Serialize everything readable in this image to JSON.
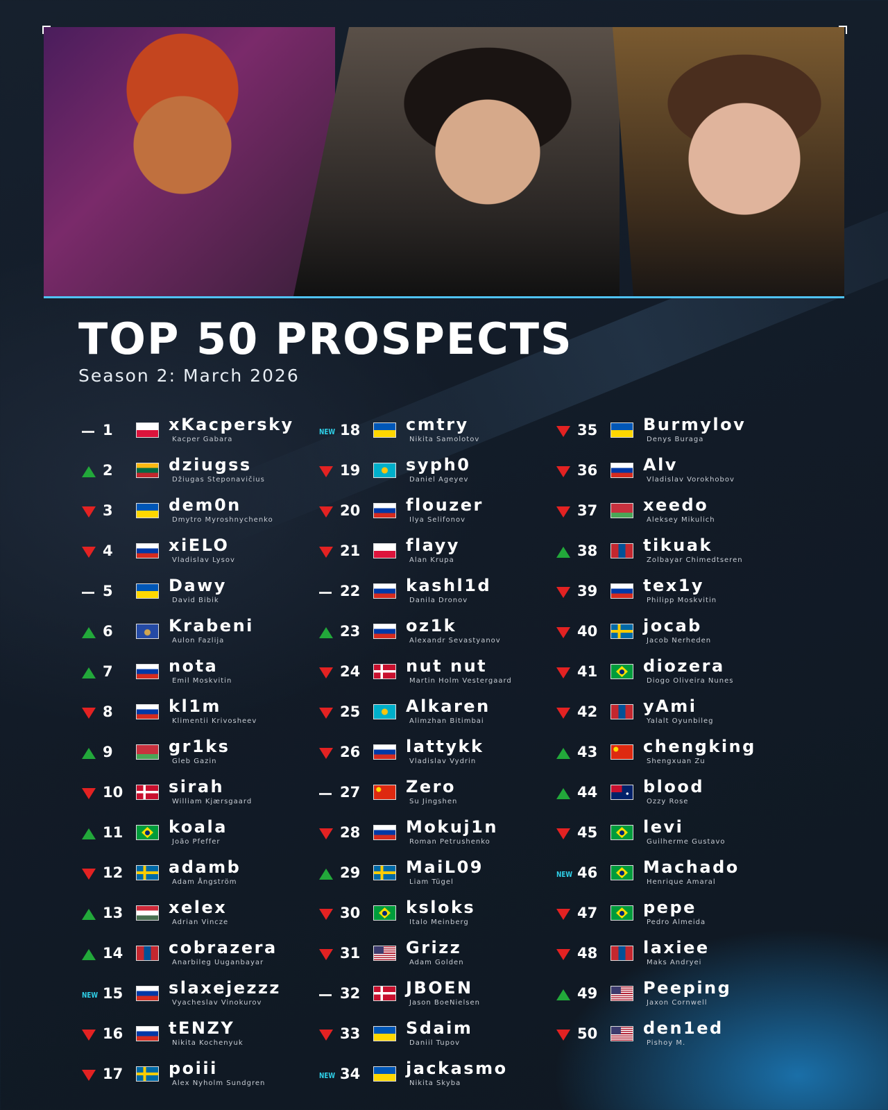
{
  "title": "TOP 50 PROSPECTS",
  "subtitle": "Season 2: March 2026",
  "colors": {
    "up": "#22a83a",
    "down": "#e32222",
    "new": "#2fd0e8",
    "accent": "#4fc3f7"
  },
  "players": [
    {
      "rank": "1",
      "trend": "same",
      "flag": "pl",
      "nick": "xKacpersky",
      "name": "Kacper Gabara"
    },
    {
      "rank": "2",
      "trend": "up",
      "flag": "lt",
      "nick": "dziugss",
      "name": "Džiugas Steponavičius"
    },
    {
      "rank": "3",
      "trend": "down",
      "flag": "ua",
      "nick": "dem0n",
      "name": "Dmytro Myroshnychenko"
    },
    {
      "rank": "4",
      "trend": "down",
      "flag": "ru",
      "nick": "xiELO",
      "name": "Vladislav Lysov"
    },
    {
      "rank": "5",
      "trend": "same",
      "flag": "ua",
      "nick": "Dawy",
      "name": "David Bibik"
    },
    {
      "rank": "6",
      "trend": "up",
      "flag": "xk",
      "nick": "Krabeni",
      "name": "Aulon Fazlija"
    },
    {
      "rank": "7",
      "trend": "up",
      "flag": "ru",
      "nick": "nota",
      "name": "Emil Moskvitin"
    },
    {
      "rank": "8",
      "trend": "down",
      "flag": "ru",
      "nick": "kl1m",
      "name": "Klimentii Krivosheev"
    },
    {
      "rank": "9",
      "trend": "up",
      "flag": "by",
      "nick": "gr1ks",
      "name": "Gleb Gazin"
    },
    {
      "rank": "10",
      "trend": "down",
      "flag": "dk",
      "nick": "sirah",
      "name": "William Kjærsgaard"
    },
    {
      "rank": "11",
      "trend": "up",
      "flag": "br",
      "nick": "koala",
      "name": "João Pfeffer"
    },
    {
      "rank": "12",
      "trend": "down",
      "flag": "se",
      "nick": "adamb",
      "name": "Adam Ångström"
    },
    {
      "rank": "13",
      "trend": "up",
      "flag": "hu",
      "nick": "xelex",
      "name": "Adrian Vincze"
    },
    {
      "rank": "14",
      "trend": "up",
      "flag": "mn",
      "nick": "cobrazera",
      "name": "Anarbileg Uuganbayar"
    },
    {
      "rank": "15",
      "trend": "new",
      "flag": "ru",
      "nick": "slaxejezzz",
      "name": "Vyacheslav Vinokurov"
    },
    {
      "rank": "16",
      "trend": "down",
      "flag": "ru",
      "nick": "tENZY",
      "name": "Nikita Kochenyuk"
    },
    {
      "rank": "17",
      "trend": "down",
      "flag": "se",
      "nick": "poiii",
      "name": "Alex Nyholm Sundgren"
    },
    {
      "rank": "18",
      "trend": "new",
      "flag": "ua",
      "nick": "cmtry",
      "name": "Nikita Samolotov"
    },
    {
      "rank": "19",
      "trend": "down",
      "flag": "kz",
      "nick": "syph0",
      "name": "Daniel Ageyev"
    },
    {
      "rank": "20",
      "trend": "down",
      "flag": "ru",
      "nick": "flouzer",
      "name": "Ilya Selifonov"
    },
    {
      "rank": "21",
      "trend": "down",
      "flag": "pl",
      "nick": "flayy",
      "name": "Alan Krupa"
    },
    {
      "rank": "22",
      "trend": "same",
      "flag": "ru",
      "nick": "kashl1d",
      "name": "Danila Dronov"
    },
    {
      "rank": "23",
      "trend": "up",
      "flag": "ru",
      "nick": "oz1k",
      "name": "Alexandr Sevastyanov"
    },
    {
      "rank": "24",
      "trend": "down",
      "flag": "dk",
      "nick": "nut nut",
      "name": "Martin Holm Vestergaard"
    },
    {
      "rank": "25",
      "trend": "down",
      "flag": "kz",
      "nick": "Alkaren",
      "name": "Alimzhan Bitimbai"
    },
    {
      "rank": "26",
      "trend": "down",
      "flag": "ru",
      "nick": "lattykk",
      "name": "Vladislav Vydrin"
    },
    {
      "rank": "27",
      "trend": "same",
      "flag": "cn",
      "nick": "Zero",
      "name": "Su Jingshen"
    },
    {
      "rank": "28",
      "trend": "down",
      "flag": "ru",
      "nick": "Mokuj1n",
      "name": "Roman Petrushenko"
    },
    {
      "rank": "29",
      "trend": "up",
      "flag": "se",
      "nick": "MaiL09",
      "name": "Liam Tügel"
    },
    {
      "rank": "30",
      "trend": "down",
      "flag": "br",
      "nick": "ksloks",
      "name": "Italo Meinberg"
    },
    {
      "rank": "31",
      "trend": "down",
      "flag": "us",
      "nick": "Grizz",
      "name": "Adam Golden"
    },
    {
      "rank": "32",
      "trend": "same",
      "flag": "dk",
      "nick": "JBOEN",
      "name": "Jason BoeNielsen"
    },
    {
      "rank": "33",
      "trend": "down",
      "flag": "ua",
      "nick": "Sdaim",
      "name": "Daniil Tupov"
    },
    {
      "rank": "34",
      "trend": "new",
      "flag": "ua",
      "nick": "jackasmo",
      "name": "Nikita Skyba"
    },
    {
      "rank": "35",
      "trend": "down",
      "flag": "ua",
      "nick": "Burmylov",
      "name": "Denys Buraga"
    },
    {
      "rank": "36",
      "trend": "down",
      "flag": "ru",
      "nick": "Alv",
      "name": "Vladislav Vorokhobov"
    },
    {
      "rank": "37",
      "trend": "down",
      "flag": "by",
      "nick": "xeedo",
      "name": "Aleksey Mikulich"
    },
    {
      "rank": "38",
      "trend": "up",
      "flag": "mn",
      "nick": "tikuak",
      "name": "Zolbayar Chimedtseren"
    },
    {
      "rank": "39",
      "trend": "down",
      "flag": "ru",
      "nick": "tex1y",
      "name": "Philipp Moskvitin"
    },
    {
      "rank": "40",
      "trend": "down",
      "flag": "se",
      "nick": "jocab",
      "name": "Jacob Nerheden"
    },
    {
      "rank": "41",
      "trend": "down",
      "flag": "br",
      "nick": "diozera",
      "name": "Diogo Oliveira Nunes"
    },
    {
      "rank": "42",
      "trend": "down",
      "flag": "mn",
      "nick": "yAmi",
      "name": "Yalalt Oyunbileg"
    },
    {
      "rank": "43",
      "trend": "up",
      "flag": "cn",
      "nick": "chengking",
      "name": "Shengxuan Zu"
    },
    {
      "rank": "44",
      "trend": "up",
      "flag": "au",
      "nick": "blood",
      "name": "Ozzy Rose"
    },
    {
      "rank": "45",
      "trend": "down",
      "flag": "br",
      "nick": "levi",
      "name": "Guilherme Gustavo"
    },
    {
      "rank": "46",
      "trend": "new",
      "flag": "br",
      "nick": "Machado",
      "name": "Henrique Amaral"
    },
    {
      "rank": "47",
      "trend": "down",
      "flag": "br",
      "nick": "pepe",
      "name": "Pedro Almeida"
    },
    {
      "rank": "48",
      "trend": "down",
      "flag": "mn",
      "nick": "laxiee",
      "name": "Maks Andryei"
    },
    {
      "rank": "49",
      "trend": "up",
      "flag": "us",
      "nick": "Peeping",
      "name": "Jaxon Cornwell"
    },
    {
      "rank": "50",
      "trend": "down",
      "flag": "us",
      "nick": "den1ed",
      "name": "Pishoy M."
    }
  ],
  "new_label": "NEW"
}
